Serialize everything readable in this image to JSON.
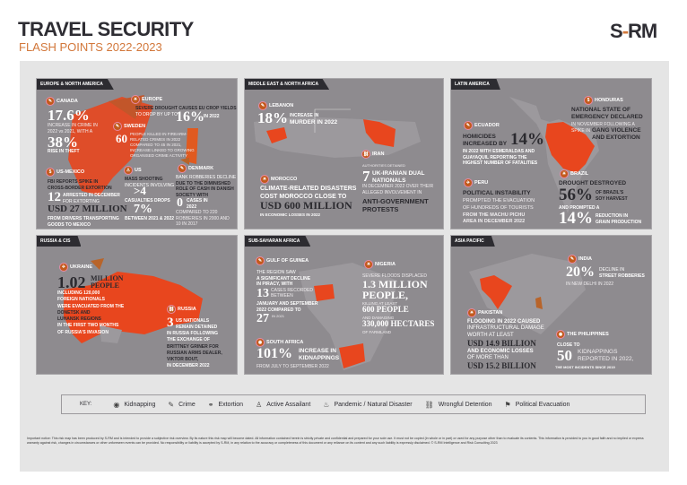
{
  "header": {
    "title": "TRAVEL SECURITY",
    "subtitle": "FLASH POINTS 2022-2023",
    "logo": "S-RM"
  },
  "colors": {
    "accent": "#d2773a",
    "panel": "#8e8b8f",
    "map_highlight": "#e8461e",
    "icon": "#c25a1c",
    "dark": "#2d2c31"
  },
  "europe": {
    "title": "EUROPE & NORTH AMERICA",
    "canada": {
      "label": "CANADA",
      "icon": "crime-icon",
      "stat1": "17.6%",
      "text1": [
        "INCREASE IN CRIME IN",
        "2022 vs 2021, WITH A"
      ],
      "stat2": "38%",
      "text2": "RISE IN THEFT"
    },
    "eu": {
      "label": "EUROPE",
      "icon": "natural-disaster-icon",
      "text": [
        "SEVERE DROUGHT CAUSES EU CROP YIELDS",
        "TO DROP BY UP TO"
      ],
      "stat": "16%",
      "stat_suffix": "IN 2022"
    },
    "sweden": {
      "label": "SWEDEN",
      "icon": "crime-icon",
      "stat": "60",
      "text": [
        "PEOPLE KILLED IN FIREARM-",
        "RELATED CRIMES IN 2022",
        "COMPARED TO 45 IN 2021,",
        "INCREASE LINKED TO GROWING",
        "ORGANISED CRIME ACTIVITY"
      ]
    },
    "usmexico": {
      "label": "US-MEXICO",
      "icon": "extortion-icon",
      "text": [
        "FBI REPORTS SPIKE IN",
        "CROSS-BORDER EXTORTION"
      ],
      "stat": "12",
      "text2": [
        "ARRESTED IN DECEMBER",
        "FOR EXTORTING"
      ],
      "amount": "USD 27 MILLION",
      "text3": [
        "FROM DRIVERS TRANSPORTING",
        "GOODS TO MEXICO"
      ]
    },
    "us": {
      "label": "US",
      "icon": "active-assailant-icon",
      "text": [
        "MASS SHOOTING",
        "INCIDENTS INVOLVING"
      ],
      "stat": ">4",
      "text2": "CASUALTIES DROPS",
      "stat2": "7%",
      "text3": "BETWEEN 2021 & 2022"
    },
    "denmark": {
      "label": "DENMARK",
      "icon": "crime-icon",
      "text": [
        "BANK ROBBERIES DECLINE",
        "DUE TO THE DIMINISHED",
        "ROLE OF CASH IN DANISH",
        "SOCIETY WITH"
      ],
      "stat": "0",
      "stat_suffix": [
        "CASES IN",
        "2022"
      ],
      "text2": [
        "COMPARED TO 220",
        "ROBBERIES IN 2000 AND",
        "10 IN 2017"
      ]
    }
  },
  "mena": {
    "title": "MIDDLE EAST & NORTH AFRICA",
    "lebanon": {
      "label": "LEBANON",
      "icon": "crime-icon",
      "stat": "18%",
      "text": [
        "INCREASE IN",
        "MURDER IN 2022"
      ]
    },
    "iran": {
      "label": "IRAN",
      "icon": "wrongful-detention-icon",
      "text": "AUTHORITIES DETAINED",
      "stat": "7",
      "text2": [
        "UK-IRANIAN DUAL",
        "NATIONALS"
      ],
      "text3": [
        "IN DECEMBER 2022 OVER THEIR",
        "ALLEGED INVOLVEMENT IN"
      ],
      "text4": [
        "ANTI-GOVERNMENT",
        "PROTESTS"
      ]
    },
    "morocco": {
      "label": "MOROCCO",
      "icon": "natural-disaster-icon",
      "text": [
        "CLIMATE-RELATED DISASTERS",
        "COST MOROCCO CLOSE TO"
      ],
      "amount": "USD 600 MILLION",
      "text2": "IN ECONOMIC LOSSES IN 2022"
    }
  },
  "latam": {
    "title": "LATIN AMERICA",
    "honduras": {
      "label": "HONDURAS",
      "icon": "extortion-icon",
      "text": [
        "NATIONAL STATE OF",
        "EMERGENCY DECLARED"
      ],
      "text2": [
        "IN NOVEMBER FOLLOWING A",
        "SPIKE IN"
      ],
      "text3": [
        "GANG VIOLENCE",
        "AND EXTORTION"
      ]
    },
    "ecuador": {
      "label": "ECUADOR",
      "icon": "crime-icon",
      "text": [
        "HOMICIDES",
        "INCREASED BY"
      ],
      "stat": "14%",
      "text2": [
        "IN 2022 WITH ESMERALDAS AND",
        "GUAYAQUIL REPORTING THE",
        "HIGHEST NUMBER OF FATALITIES"
      ]
    },
    "peru": {
      "label": "PERU",
      "icon": "political-evacuation-icon",
      "text": "POLITICAL INSTABILITY",
      "text2": [
        "PROMPTED THE EVACUATION",
        "OF HUNDREDS OF TOURISTS",
        "FROM THE MACHU PICHU",
        "AREA IN DECEMBER 2022"
      ]
    },
    "brazil": {
      "label": "BRAZIL",
      "icon": "natural-disaster-icon",
      "text": "DROUGHT DESTROYED",
      "stat": "56%",
      "text2": [
        "OF BRAZIL'S",
        "SOY HARVEST"
      ],
      "text3": "AND PROMPTED A",
      "stat2": "14%",
      "text4": [
        "REDUCTION IN",
        "GRAIN PRODUCTION"
      ]
    }
  },
  "russia": {
    "title": "RUSSIA & CIS",
    "ukraine": {
      "label": "UKRAINE",
      "icon": "political-evacuation-icon",
      "stat": "1.02",
      "stat_suffix": [
        "MILLION",
        "PEOPLE"
      ],
      "text": [
        "INCLUDING 120,000",
        "FOREIGN NATIONALS",
        "WERE EVACUATED FROM THE",
        "DONETSK AND",
        "LUHANSK REGIONS",
        "IN THE FIRST TWO MONTHS",
        "OF RUSSIA'S INVASION"
      ]
    },
    "russia": {
      "label": "RUSSIA",
      "icon": "wrongful-detention-icon",
      "stat": "3",
      "text": [
        "US NATIONALS",
        "REMAIN DETAINED",
        "IN RUSSIA FOLLOWING",
        "THE EXCHANGE OF",
        "BRITTNEY GRINER FOR",
        "RUSSIAN ARMS DEALER,",
        "VIKTOR BOUT,",
        "IN DECEMBER 2022"
      ]
    }
  },
  "ssa": {
    "title": "SUB-SAHARAN AFRICA",
    "guinea": {
      "label": "GULF OF GUINEA",
      "icon": "crime-icon",
      "text": [
        "THE REGION SAW",
        "A SIGNIFICANT DECLINE",
        "IN PIRACY, WITH"
      ],
      "stat": "13",
      "text2": [
        "CASES RECORDED",
        "BETWEEN"
      ],
      "text3": [
        "JANUARY AND SEPTEMBER",
        "2022 COMPARED TO"
      ],
      "stat2": "27",
      "text4": "IN 2021"
    },
    "nigeria": {
      "label": "NIGERIA",
      "icon": "natural-disaster-icon",
      "text": "SEVERE FLOODS DISPLACED",
      "stat": "1.3 MILLION",
      "stat_b": "PEOPLE,",
      "text2": "KILLING AT LEAST",
      "stat2": "600 PEOPLE",
      "text3": "AND DAMAGING",
      "stat3": "330,000 HECTARES",
      "text4": "OF FARMLAND"
    },
    "southafrica": {
      "label": "SOUTH AFRICA",
      "icon": "kidnapping-icon",
      "stat": "101%",
      "text": [
        "INCREASE IN",
        "KIDNAPPINGS"
      ],
      "text2": "FROM JULY TO SEPTEMBER 2022"
    }
  },
  "apac": {
    "title": "ASIA PACIFIC",
    "india": {
      "label": "INDIA",
      "icon": "crime-icon",
      "stat": "20%",
      "text": [
        "DECLINE IN",
        "STREET ROBBERIES"
      ],
      "text2": "IN NEW DELHI IN 2022"
    },
    "pakistan": {
      "label": "PAKISTAN",
      "icon": "natural-disaster-icon",
      "text": [
        "FLOODING IN 2022 CAUSED",
        "INFRASTRUCTURAL DAMAGE",
        "WORTH AT LEAST"
      ],
      "amount": "USD 14.9 BILLION",
      "text2": [
        "AND ECONOMIC LOSSES",
        "OF MORE THAN"
      ],
      "amount2": "USD 15.2 BILLION"
    },
    "philippines": {
      "label": "THE PHILIPPINES",
      "icon": "kidnapping-icon",
      "text": "CLOSE TO",
      "stat": "50",
      "text2": [
        "KIDNAPPINGS",
        "REPORTED IN 2022,"
      ],
      "text3": "THE MOST INCIDENTS SINCE 2019"
    }
  },
  "key": {
    "label": "KEY:",
    "items": [
      {
        "label": "Kidnapping",
        "icon": "kidnapping-icon"
      },
      {
        "label": "Crime",
        "icon": "crime-icon"
      },
      {
        "label": "Extortion",
        "icon": "extortion-icon"
      },
      {
        "label": "Active Assailant",
        "icon": "active-assailant-icon"
      },
      {
        "label": "Pandemic / Natural Disaster",
        "icon": "natural-disaster-icon"
      },
      {
        "label": "Wrongful Detention",
        "icon": "wrongful-detention-icon"
      },
      {
        "label": "Political Evacuation",
        "icon": "political-evacuation-icon"
      }
    ]
  },
  "disclaimer": "Important notice: This risk map has been produced by S-RM and is intended to provide a subjective risk overview. By its nature this risk map will become dated. All information contained herein is strictly private and confidential and prepared for your sole use. It must not be copied (in whole or in part) or used for any purpose other than to evaluate its contents. This information is provided to you in good faith and no implied or express warranty against risk, changes in circumstances or other unforeseen events can be provided. No responsibility or liability is accepted by S-RM, in any relation to the accuracy or completeness of this document or any reliance on its content and any such liability is expressly disclaimed. © S-RM Intelligence and Risk Consulting 2023"
}
